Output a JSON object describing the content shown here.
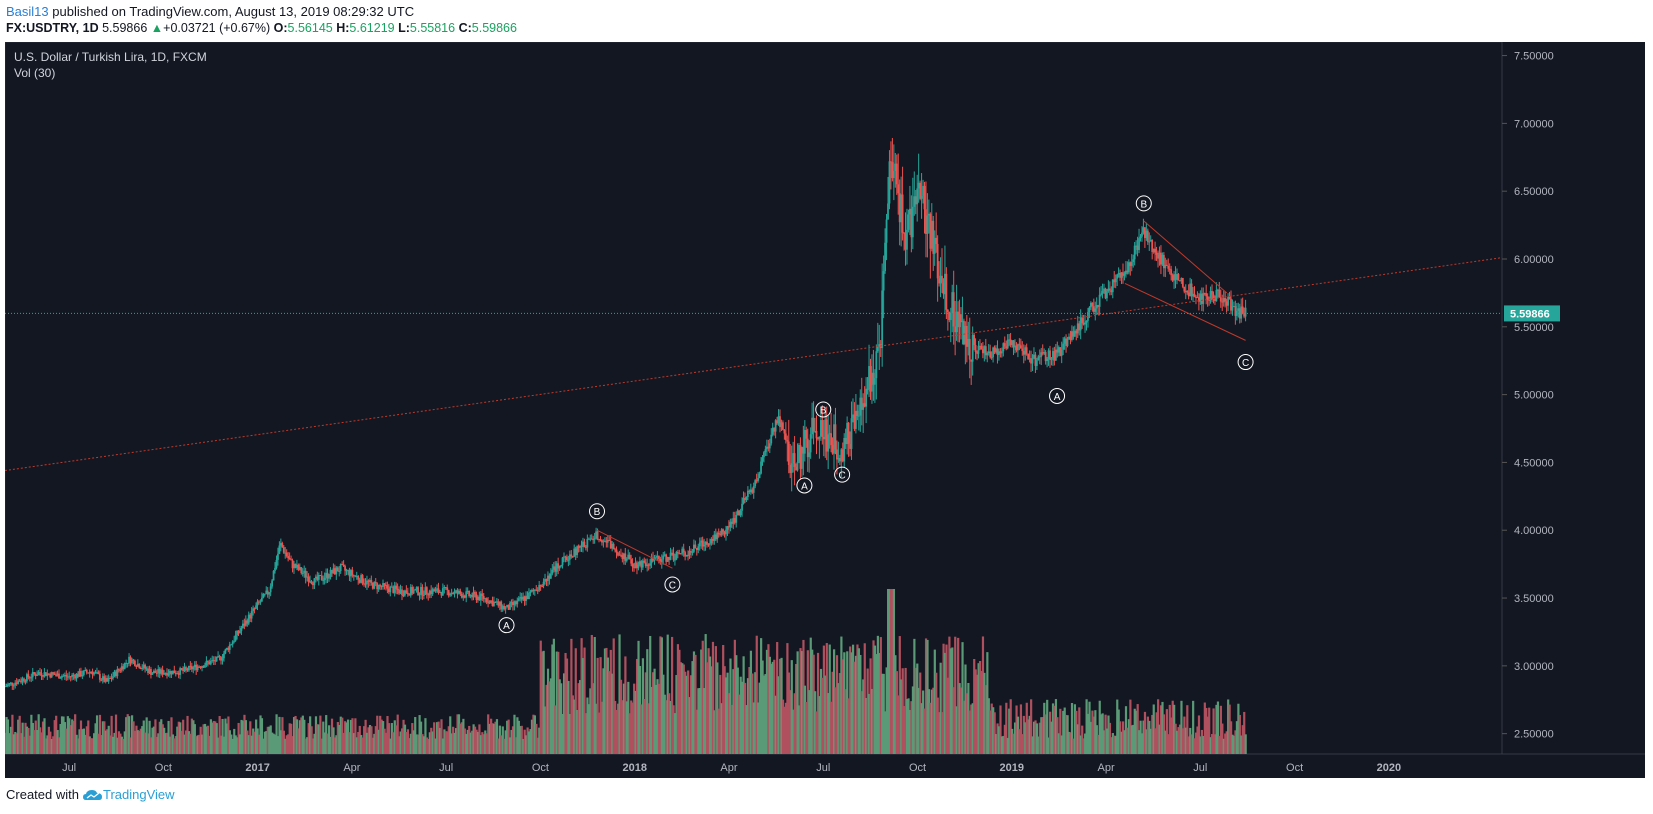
{
  "header": {
    "author": "Basil13",
    "published_text": "published on TradingView.com, August 13, 2019 08:29:32 UTC",
    "symbol": "FX:USDTRY, 1D",
    "last": "5.59866",
    "change": "+0.03721 (+0.67%)",
    "open_label": "O:",
    "open": "5.56145",
    "high_label": "H:",
    "high": "5.61219",
    "low_label": "L:",
    "low": "5.55816",
    "close_label": "C:",
    "close": "5.59866"
  },
  "legend": {
    "title": "U.S. Dollar / Turkish Lira, 1D, FXCM",
    "volume": "Vol (30)"
  },
  "footer": {
    "created_with": "Created with",
    "brand": "TradingView"
  },
  "colors": {
    "background": "#131722",
    "up": "#26a69a",
    "down": "#ef5350",
    "vol_up": "#5a9a76",
    "vol_down": "#b0505e",
    "price_line": "#26a69a",
    "trendline": "#c0392b",
    "axis_text": "#b2b5be"
  },
  "chart_data": {
    "type": "candlestick",
    "title": "U.S. Dollar / Turkish Lira, 1D, FXCM",
    "ylim": [
      2.35,
      7.6
    ],
    "y_ticks": [
      "7.50000",
      "7.00000",
      "6.50000",
      "6.00000",
      "5.50000",
      "5.00000",
      "4.50000",
      "4.00000",
      "3.50000",
      "3.00000",
      "2.50000"
    ],
    "x_ticks": [
      "Jul",
      "Oct",
      "2017",
      "Apr",
      "Jul",
      "Oct",
      "2018",
      "Apr",
      "Jul",
      "Oct",
      "2019",
      "Apr",
      "Jul",
      "Oct",
      "2020"
    ],
    "x_tick_bold": [
      false,
      false,
      true,
      false,
      false,
      false,
      true,
      false,
      false,
      false,
      true,
      false,
      false,
      false,
      true
    ],
    "last_price": 5.59866,
    "last_price_label": "5.59866",
    "x_range_months": [
      2016.33,
      2020.3
    ],
    "price_path": [
      [
        2016.33,
        2.85
      ],
      [
        2016.42,
        2.95
      ],
      [
        2016.5,
        2.92
      ],
      [
        2016.56,
        2.96
      ],
      [
        2016.6,
        2.88
      ],
      [
        2016.66,
        3.05
      ],
      [
        2016.72,
        2.95
      ],
      [
        2016.8,
        2.96
      ],
      [
        2016.9,
        3.05
      ],
      [
        2017.0,
        3.45
      ],
      [
        2017.03,
        3.55
      ],
      [
        2017.06,
        3.9
      ],
      [
        2017.09,
        3.75
      ],
      [
        2017.15,
        3.62
      ],
      [
        2017.22,
        3.72
      ],
      [
        2017.3,
        3.6
      ],
      [
        2017.38,
        3.55
      ],
      [
        2017.5,
        3.55
      ],
      [
        2017.6,
        3.5
      ],
      [
        2017.66,
        3.42
      ],
      [
        2017.72,
        3.52
      ],
      [
        2017.8,
        3.75
      ],
      [
        2017.9,
        3.97
      ],
      [
        2018.0,
        3.75
      ],
      [
        2018.06,
        3.78
      ],
      [
        2018.15,
        3.85
      ],
      [
        2018.25,
        4.02
      ],
      [
        2018.32,
        4.35
      ],
      [
        2018.38,
        4.85
      ],
      [
        2018.42,
        4.45
      ],
      [
        2018.48,
        4.78
      ],
      [
        2018.55,
        4.6
      ],
      [
        2018.6,
        4.88
      ],
      [
        2018.65,
        5.35
      ],
      [
        2018.68,
        6.8
      ],
      [
        2018.72,
        6.1
      ],
      [
        2018.75,
        6.6
      ],
      [
        2018.8,
        6.0
      ],
      [
        2018.85,
        5.55
      ],
      [
        2018.9,
        5.35
      ],
      [
        2018.95,
        5.3
      ],
      [
        2019.0,
        5.4
      ],
      [
        2019.06,
        5.25
      ],
      [
        2019.12,
        5.3
      ],
      [
        2019.2,
        5.6
      ],
      [
        2019.3,
        5.9
      ],
      [
        2019.35,
        6.2
      ],
      [
        2019.42,
        5.9
      ],
      [
        2019.5,
        5.7
      ],
      [
        2019.55,
        5.75
      ],
      [
        2019.6,
        5.6
      ]
    ],
    "annotations": [
      {
        "label": "A",
        "x": 2017.66,
        "y": 3.3
      },
      {
        "label": "B",
        "x": 2017.9,
        "y": 4.14
      },
      {
        "label": "C",
        "x": 2018.1,
        "y": 3.6
      },
      {
        "label": "A",
        "x": 2018.45,
        "y": 4.33
      },
      {
        "label": "B",
        "x": 2018.5,
        "y": 4.89
      },
      {
        "label": "C",
        "x": 2018.55,
        "y": 4.41
      },
      {
        "label": "A",
        "x": 2019.12,
        "y": 4.99
      },
      {
        "label": "B",
        "x": 2019.35,
        "y": 6.41
      },
      {
        "label": "C",
        "x": 2019.62,
        "y": 5.24
      }
    ],
    "trendlines": [
      {
        "from": [
          2016.33,
          4.44
        ],
        "to": [
          2020.3,
          6.01
        ]
      },
      {
        "from": [
          2017.9,
          4.0
        ],
        "to": [
          2018.1,
          3.72
        ]
      },
      {
        "from": [
          2019.35,
          6.28
        ],
        "to": [
          2019.57,
          5.75
        ]
      },
      {
        "from": [
          2019.3,
          5.82
        ],
        "to": [
          2019.62,
          5.4
        ]
      }
    ]
  }
}
